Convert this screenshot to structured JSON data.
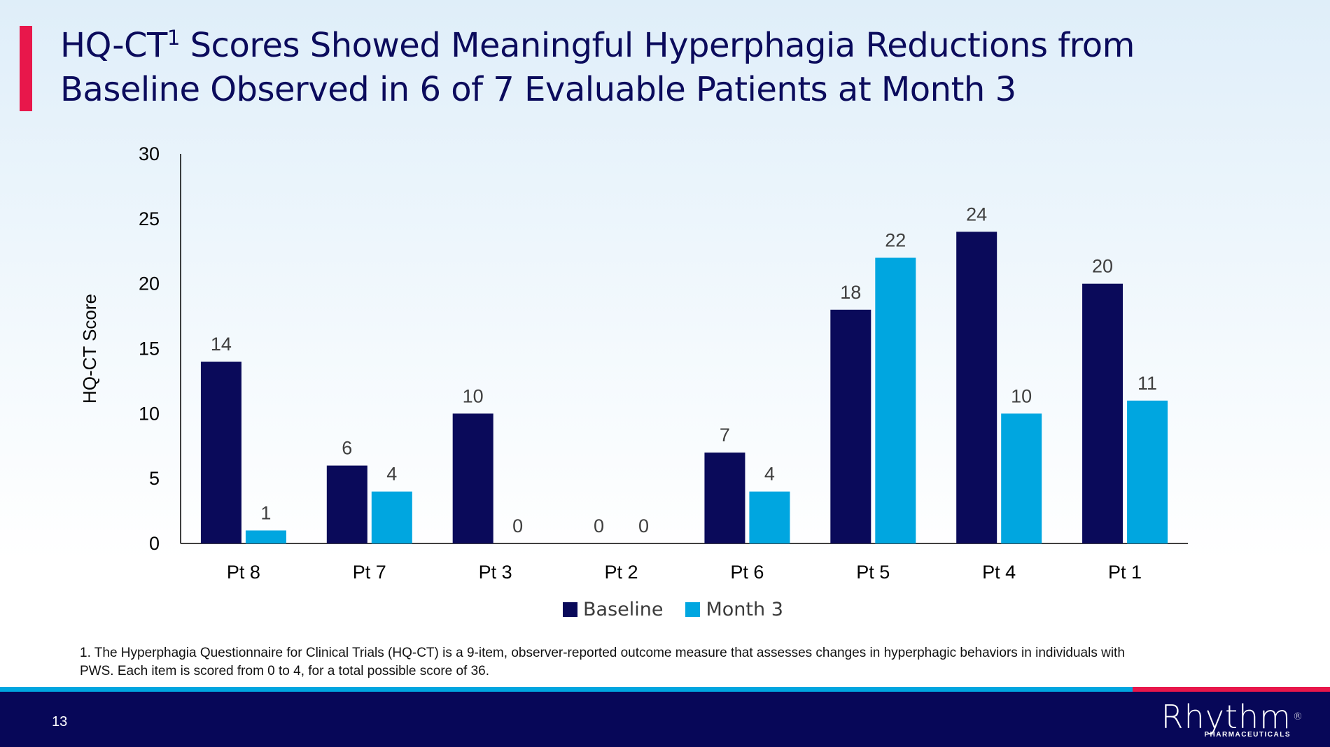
{
  "title": {
    "line1_before_sup": "HQ-CT",
    "sup": "1",
    "line1_after_sup": " Scores Showed Meaningful Hyperphagia Reductions from",
    "line2": "Baseline Observed in 6 of 7 Evaluable Patients at Month 3"
  },
  "chart_data": {
    "type": "bar",
    "categories": [
      "Pt 8",
      "Pt 7",
      "Pt 3",
      "Pt 2",
      "Pt 6",
      "Pt 5",
      "Pt 4",
      "Pt 1"
    ],
    "series": [
      {
        "name": "Baseline",
        "values": [
          14,
          6,
          10,
          0,
          7,
          18,
          24,
          20
        ],
        "color": "#0a0a5a"
      },
      {
        "name": "Month 3",
        "values": [
          1,
          4,
          0,
          0,
          4,
          22,
          10,
          11
        ],
        "color": "#00a6e0"
      }
    ],
    "ylabel": "HQ-CT Score",
    "xlabel": "",
    "ylim": [
      0,
      30
    ],
    "yticks": [
      0,
      5,
      10,
      15,
      20,
      25,
      30
    ],
    "grid": false,
    "legend_position": "bottom"
  },
  "legend": {
    "baseline_label": "Baseline",
    "month3_label": "Month 3",
    "baseline_color": "#0a0a5a",
    "month3_color": "#00a6e0"
  },
  "footnote": {
    "line1": "1. The Hyperphagia Questionnaire for Clinical Trials (HQ-CT) is a 9-item, observer-reported outcome measure that assesses changes in hyperphagic behaviors in individuals with",
    "line2": "PWS. Each item is scored from 0 to 4, for a total possible score of 36."
  },
  "footer": {
    "page_number": "13",
    "logo_text": "Rhythm",
    "logo_registered": "®",
    "logo_subtext": "PHARMACEUTICALS"
  },
  "colors": {
    "accent": "#e8174b",
    "navy": "#070758",
    "blue": "#00a6e0"
  }
}
